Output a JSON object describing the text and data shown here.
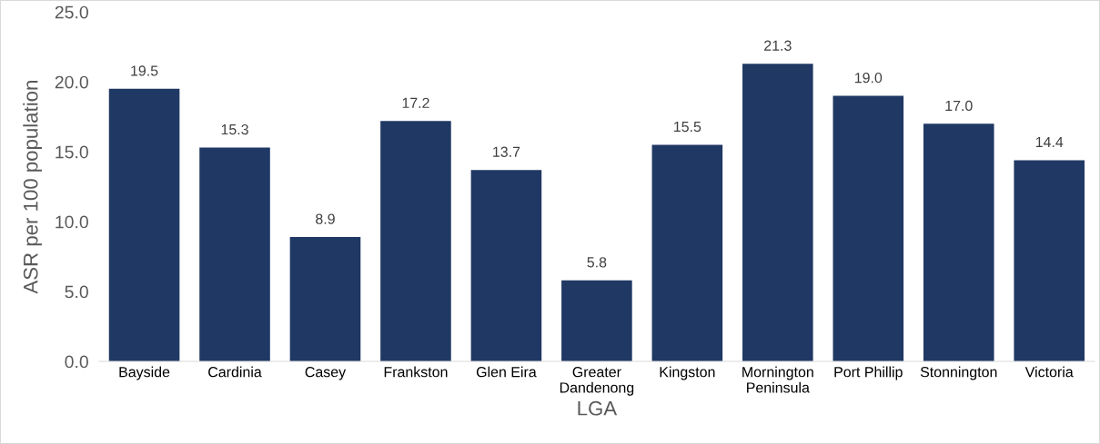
{
  "chart_data": {
    "type": "bar",
    "xlabel": "LGA",
    "ylabel": "ASR per 100 population",
    "categories": [
      "Bayside",
      "Cardinia",
      "Casey",
      "Frankston",
      "Glen Eira",
      "Greater\nDandenong",
      "Kingston",
      "Mornington\nPeninsula",
      "Port Phillip",
      "Stonnington",
      "Victoria"
    ],
    "values": [
      19.5,
      15.3,
      8.9,
      17.2,
      13.7,
      5.8,
      15.5,
      21.3,
      19.0,
      17.0,
      14.4
    ],
    "color": "#203864",
    "ylim": [
      0,
      25
    ],
    "yticks": [
      {
        "value": 0,
        "label": "0.0"
      },
      {
        "value": 5,
        "label": "5.0"
      },
      {
        "value": 10,
        "label": "10.0"
      },
      {
        "value": 15,
        "label": "15.0"
      },
      {
        "value": 20,
        "label": "20.0"
      },
      {
        "value": 25,
        "label": "25.0"
      }
    ],
    "value_labels": [
      "19.5",
      "15.3",
      "8.9",
      "17.2",
      "13.7",
      "5.8",
      "15.5",
      "21.3",
      "19.0",
      "17.0",
      "14.4"
    ],
    "grid": false,
    "legend": false
  }
}
